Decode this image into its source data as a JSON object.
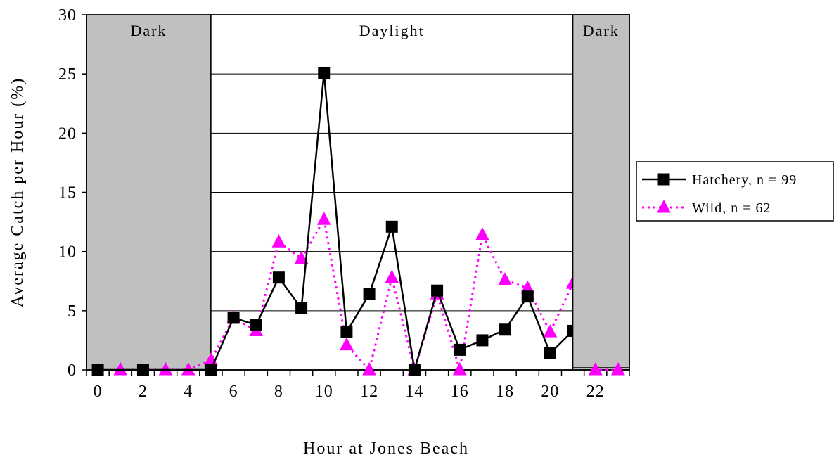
{
  "chart_data": {
    "type": "line",
    "title": "",
    "xlabel": "Hour at Jones Beach",
    "ylabel": "Average Catch per Hour (%)",
    "x": [
      0,
      1,
      2,
      3,
      4,
      5,
      6,
      7,
      8,
      9,
      10,
      11,
      12,
      13,
      14,
      15,
      16,
      17,
      18,
      19,
      20,
      21,
      22,
      23
    ],
    "x_tick_labels": [
      "0",
      "2",
      "4",
      "6",
      "8",
      "10",
      "12",
      "14",
      "16",
      "18",
      "20",
      "22"
    ],
    "y_tick_labels": [
      "0",
      "5",
      "10",
      "15",
      "20",
      "25",
      "30"
    ],
    "xlim": [
      -0.5,
      23.5
    ],
    "ylim": [
      0,
      30
    ],
    "grid": "horizontal",
    "legend_position": "right",
    "bands": [
      {
        "label": "Dark",
        "from": -0.5,
        "to": 5,
        "color": "#c0c0c0"
      },
      {
        "label": "Daylight",
        "from": 5,
        "to": 21,
        "color": "#ffffff"
      },
      {
        "label": "Dark",
        "from": 21,
        "to": 23.5,
        "color": "#c0c0c0"
      }
    ],
    "series": [
      {
        "name": "Hatchery, n = 99",
        "color": "#000000",
        "line_style": "solid",
        "marker": "square",
        "values": [
          0,
          null,
          0,
          null,
          null,
          0,
          4.4,
          3.8,
          7.8,
          5.2,
          25.1,
          3.2,
          6.4,
          12.1,
          0,
          6.7,
          1.7,
          2.5,
          3.4,
          6.2,
          1.4,
          3.3,
          null,
          null
        ]
      },
      {
        "name": "Wild, n = 62",
        "color": "#ff00ff",
        "line_style": "dotted",
        "marker": "triangle",
        "values": [
          null,
          0,
          null,
          0,
          0,
          0.8,
          4.4,
          3.3,
          10.8,
          9.4,
          12.7,
          2.1,
          0,
          7.8,
          0,
          6.4,
          0,
          11.4,
          7.6,
          6.9,
          3.2,
          7.3,
          0,
          0
        ]
      }
    ]
  }
}
